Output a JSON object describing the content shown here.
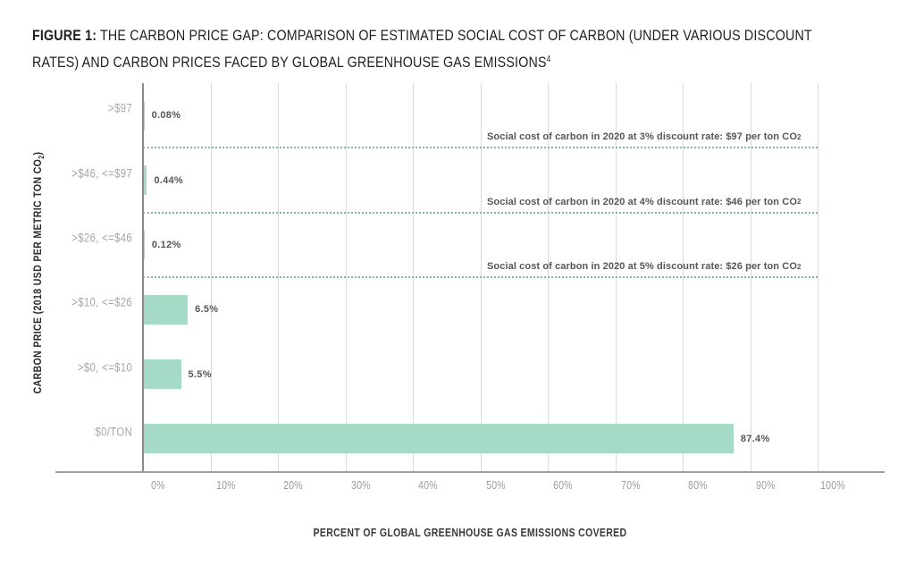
{
  "title": {
    "figure_label": "FIGURE 1:",
    "text": "THE CARBON PRICE GAP: COMPARISON OF ESTIMATED SOCIAL COST OF CARBON (UNDER VARIOUS DISCOUNT RATES) AND CARBON PRICES FACED BY GLOBAL GREENHOUSE GAS EMISSIONS",
    "footnote_marker": "4"
  },
  "chart_data": {
    "type": "bar",
    "orientation": "horizontal",
    "categories": [
      ">$97",
      ">$46, <=$97",
      ">$26, <=$46",
      ">$10, <=$26",
      ">$0, <=$10",
      "$0/TON"
    ],
    "values": [
      0.08,
      0.44,
      0.12,
      6.5,
      5.5,
      87.4
    ],
    "value_labels": [
      "0.08%",
      "0.44%",
      "0.12%",
      "6.5%",
      "5.5%",
      "87.4%"
    ],
    "xlabel": "PERCENT OF GLOBAL GREENHOUSE GAS EMISSIONS COVERED",
    "ylabel_parts": {
      "prefix": "CARBON PRICE (2018 USD PER METRIC TON CO",
      "sub": "2",
      "suffix": ")"
    },
    "xlim": [
      0,
      100
    ],
    "x_ticks": [
      "0%",
      "10%",
      "20%",
      "30%",
      "40%",
      "50%",
      "60%",
      "70%",
      "80%",
      "90%",
      "100%"
    ],
    "grid": "vertical",
    "legend": "none",
    "annotations": [
      {
        "prefix": "Social cost of carbon in 2020 at 3% discount rate: $97 per ton CO",
        "sub": "2",
        "boundary_index": 1
      },
      {
        "prefix": "Social cost of carbon in 2020 at 4% discount rate: $46 per ton CO",
        "sub": "2",
        "boundary_index": 2
      },
      {
        "prefix": "Social cost of carbon in 2020 at 5% discount rate: $26 per ton CO",
        "sub": "2",
        "boundary_index": 3
      }
    ],
    "colors": {
      "bar": "#a4dac6",
      "dotted_line": "#86b3aa",
      "gridline": "#d9d9d9",
      "axis_y": "#8a8a8a",
      "axis_x": "#9e9e9e",
      "category_label": "#a6a6a6",
      "tick_label": "#9b9b9b",
      "value_label": "#565656",
      "annotation": "#565656",
      "title": "#1f1f1f"
    }
  }
}
